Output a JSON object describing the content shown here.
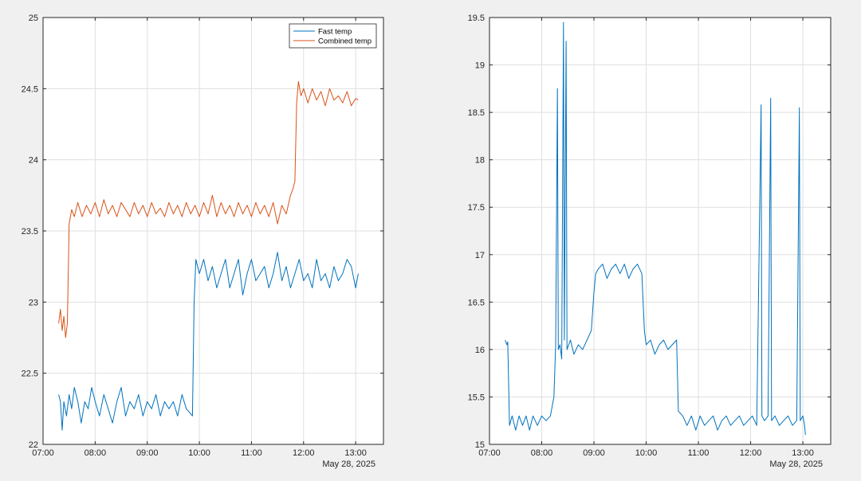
{
  "figure": {
    "background": "#f0f0f0"
  },
  "chart_data": [
    {
      "type": "line",
      "title": "",
      "xlabel": "",
      "ylabel": "",
      "date_label": "May 28, 2025",
      "x_tick_labels": [
        "07:00",
        "08:00",
        "09:00",
        "10:00",
        "11:00",
        "12:00",
        "13:00"
      ],
      "y_tick_labels": [
        "22",
        "22.5",
        "23",
        "23.5",
        "24",
        "24.5",
        "25"
      ],
      "xlim": [
        "07:00",
        "13:32"
      ],
      "ylim": [
        22,
        25
      ],
      "grid": true,
      "legend": {
        "location": "top-right",
        "entries": [
          "Fast temp",
          "Combined temp"
        ]
      },
      "series": [
        {
          "name": "Fast temp",
          "color": "#0072bd",
          "points": [
            [
              "07:18",
              22.35
            ],
            [
              "07:20",
              22.3
            ],
            [
              "07:22",
              22.1
            ],
            [
              "07:24",
              22.3
            ],
            [
              "07:27",
              22.2
            ],
            [
              "07:30",
              22.35
            ],
            [
              "07:33",
              22.25
            ],
            [
              "07:36",
              22.4
            ],
            [
              "07:40",
              22.3
            ],
            [
              "07:44",
              22.15
            ],
            [
              "07:48",
              22.3
            ],
            [
              "07:52",
              22.25
            ],
            [
              "07:56",
              22.4
            ],
            [
              "08:00",
              22.3
            ],
            [
              "08:05",
              22.2
            ],
            [
              "08:10",
              22.35
            ],
            [
              "08:15",
              22.25
            ],
            [
              "08:20",
              22.15
            ],
            [
              "08:25",
              22.3
            ],
            [
              "08:30",
              22.4
            ],
            [
              "08:35",
              22.2
            ],
            [
              "08:40",
              22.3
            ],
            [
              "08:45",
              22.25
            ],
            [
              "08:50",
              22.35
            ],
            [
              "08:55",
              22.2
            ],
            [
              "09:00",
              22.3
            ],
            [
              "09:05",
              22.25
            ],
            [
              "09:10",
              22.35
            ],
            [
              "09:15",
              22.2
            ],
            [
              "09:20",
              22.3
            ],
            [
              "09:25",
              22.25
            ],
            [
              "09:30",
              22.3
            ],
            [
              "09:35",
              22.2
            ],
            [
              "09:40",
              22.35
            ],
            [
              "09:45",
              22.25
            ],
            [
              "09:52",
              22.2
            ],
            [
              "09:54",
              23.0
            ],
            [
              "09:56",
              23.3
            ],
            [
              "10:00",
              23.2
            ],
            [
              "10:05",
              23.3
            ],
            [
              "10:10",
              23.15
            ],
            [
              "10:15",
              23.25
            ],
            [
              "10:20",
              23.1
            ],
            [
              "10:25",
              23.2
            ],
            [
              "10:30",
              23.3
            ],
            [
              "10:35",
              23.1
            ],
            [
              "10:40",
              23.2
            ],
            [
              "10:45",
              23.3
            ],
            [
              "10:50",
              23.05
            ],
            [
              "10:55",
              23.2
            ],
            [
              "11:00",
              23.3
            ],
            [
              "11:05",
              23.15
            ],
            [
              "11:10",
              23.2
            ],
            [
              "11:15",
              23.25
            ],
            [
              "11:20",
              23.1
            ],
            [
              "11:25",
              23.2
            ],
            [
              "11:30",
              23.35
            ],
            [
              "11:35",
              23.15
            ],
            [
              "11:40",
              23.25
            ],
            [
              "11:45",
              23.1
            ],
            [
              "11:50",
              23.2
            ],
            [
              "11:55",
              23.3
            ],
            [
              "12:00",
              23.15
            ],
            [
              "12:05",
              23.2
            ],
            [
              "12:10",
              23.1
            ],
            [
              "12:15",
              23.3
            ],
            [
              "12:20",
              23.15
            ],
            [
              "12:25",
              23.2
            ],
            [
              "12:30",
              23.1
            ],
            [
              "12:35",
              23.25
            ],
            [
              "12:40",
              23.15
            ],
            [
              "12:45",
              23.2
            ],
            [
              "12:50",
              23.3
            ],
            [
              "12:55",
              23.25
            ],
            [
              "13:00",
              23.1
            ],
            [
              "13:03",
              23.2
            ]
          ]
        },
        {
          "name": "Combined temp",
          "color": "#d95319",
          "points": [
            [
              "07:18",
              22.85
            ],
            [
              "07:20",
              22.95
            ],
            [
              "07:22",
              22.8
            ],
            [
              "07:24",
              22.9
            ],
            [
              "07:26",
              22.75
            ],
            [
              "07:28",
              22.85
            ],
            [
              "07:30",
              23.55
            ],
            [
              "07:33",
              23.65
            ],
            [
              "07:36",
              23.6
            ],
            [
              "07:40",
              23.7
            ],
            [
              "07:45",
              23.6
            ],
            [
              "07:50",
              23.68
            ],
            [
              "07:55",
              23.62
            ],
            [
              "08:00",
              23.7
            ],
            [
              "08:05",
              23.6
            ],
            [
              "08:10",
              23.72
            ],
            [
              "08:15",
              23.62
            ],
            [
              "08:20",
              23.68
            ],
            [
              "08:25",
              23.6
            ],
            [
              "08:30",
              23.7
            ],
            [
              "08:35",
              23.65
            ],
            [
              "08:40",
              23.6
            ],
            [
              "08:45",
              23.7
            ],
            [
              "08:50",
              23.62
            ],
            [
              "08:55",
              23.68
            ],
            [
              "09:00",
              23.6
            ],
            [
              "09:05",
              23.7
            ],
            [
              "09:10",
              23.62
            ],
            [
              "09:15",
              23.66
            ],
            [
              "09:20",
              23.6
            ],
            [
              "09:25",
              23.7
            ],
            [
              "09:30",
              23.62
            ],
            [
              "09:35",
              23.68
            ],
            [
              "09:40",
              23.6
            ],
            [
              "09:45",
              23.7
            ],
            [
              "09:50",
              23.62
            ],
            [
              "09:55",
              23.68
            ],
            [
              "10:00",
              23.6
            ],
            [
              "10:05",
              23.7
            ],
            [
              "10:10",
              23.62
            ],
            [
              "10:15",
              23.75
            ],
            [
              "10:20",
              23.6
            ],
            [
              "10:25",
              23.7
            ],
            [
              "10:30",
              23.62
            ],
            [
              "10:35",
              23.68
            ],
            [
              "10:40",
              23.6
            ],
            [
              "10:45",
              23.7
            ],
            [
              "10:50",
              23.62
            ],
            [
              "10:55",
              23.68
            ],
            [
              "11:00",
              23.6
            ],
            [
              "11:05",
              23.7
            ],
            [
              "11:10",
              23.62
            ],
            [
              "11:15",
              23.68
            ],
            [
              "11:20",
              23.6
            ],
            [
              "11:25",
              23.7
            ],
            [
              "11:30",
              23.55
            ],
            [
              "11:35",
              23.68
            ],
            [
              "11:40",
              23.62
            ],
            [
              "11:45",
              23.75
            ],
            [
              "11:48",
              23.8
            ],
            [
              "11:50",
              23.85
            ],
            [
              "11:52",
              24.4
            ],
            [
              "11:54",
              24.55
            ],
            [
              "11:57",
              24.45
            ],
            [
              "12:00",
              24.5
            ],
            [
              "12:05",
              24.4
            ],
            [
              "12:10",
              24.5
            ],
            [
              "12:15",
              24.42
            ],
            [
              "12:20",
              24.48
            ],
            [
              "12:25",
              24.38
            ],
            [
              "12:30",
              24.5
            ],
            [
              "12:35",
              24.42
            ],
            [
              "12:40",
              24.45
            ],
            [
              "12:45",
              24.4
            ],
            [
              "12:50",
              24.48
            ],
            [
              "12:55",
              24.38
            ],
            [
              "13:00",
              24.43
            ],
            [
              "13:03",
              24.42
            ]
          ]
        }
      ]
    },
    {
      "type": "line",
      "title": "",
      "xlabel": "",
      "ylabel": "",
      "date_label": "May 28, 2025",
      "x_tick_labels": [
        "07:00",
        "08:00",
        "09:00",
        "10:00",
        "11:00",
        "12:00",
        "13:00"
      ],
      "y_tick_labels": [
        "15",
        "15.5",
        "16",
        "16.5",
        "17",
        "17.5",
        "18",
        "18.5",
        "19",
        "19.5"
      ],
      "xlim": [
        "07:00",
        "13:32"
      ],
      "ylim": [
        15,
        19.5
      ],
      "grid": true,
      "series": [
        {
          "color": "#0072bd",
          "points": [
            [
              "07:18",
              16.1
            ],
            [
              "07:20",
              16.05
            ],
            [
              "07:21",
              16.08
            ],
            [
              "07:23",
              15.2
            ],
            [
              "07:26",
              15.3
            ],
            [
              "07:30",
              15.15
            ],
            [
              "07:34",
              15.3
            ],
            [
              "07:38",
              15.2
            ],
            [
              "07:42",
              15.3
            ],
            [
              "07:46",
              15.15
            ],
            [
              "07:50",
              15.3
            ],
            [
              "07:55",
              15.2
            ],
            [
              "08:00",
              15.3
            ],
            [
              "08:05",
              15.25
            ],
            [
              "08:10",
              15.3
            ],
            [
              "08:14",
              15.5
            ],
            [
              "08:16",
              16.05
            ],
            [
              "08:18",
              18.75
            ],
            [
              "08:19",
              16.0
            ],
            [
              "08:21",
              16.05
            ],
            [
              "08:23",
              15.9
            ],
            [
              "08:25",
              19.45
            ],
            [
              "08:26",
              16.1
            ],
            [
              "08:28",
              19.25
            ],
            [
              "08:29",
              16.0
            ],
            [
              "08:33",
              16.1
            ],
            [
              "08:37",
              15.95
            ],
            [
              "08:42",
              16.05
            ],
            [
              "08:47",
              16.0
            ],
            [
              "08:52",
              16.1
            ],
            [
              "08:57",
              16.2
            ],
            [
              "09:00",
              16.6
            ],
            [
              "09:02",
              16.8
            ],
            [
              "09:05",
              16.85
            ],
            [
              "09:10",
              16.9
            ],
            [
              "09:15",
              16.75
            ],
            [
              "09:20",
              16.85
            ],
            [
              "09:25",
              16.9
            ],
            [
              "09:30",
              16.8
            ],
            [
              "09:35",
              16.9
            ],
            [
              "09:40",
              16.75
            ],
            [
              "09:45",
              16.85
            ],
            [
              "09:50",
              16.9
            ],
            [
              "09:55",
              16.8
            ],
            [
              "09:58",
              16.2
            ],
            [
              "10:00",
              16.05
            ],
            [
              "10:05",
              16.1
            ],
            [
              "10:10",
              15.95
            ],
            [
              "10:15",
              16.05
            ],
            [
              "10:20",
              16.1
            ],
            [
              "10:25",
              16.0
            ],
            [
              "10:30",
              16.05
            ],
            [
              "10:35",
              16.1
            ],
            [
              "10:37",
              15.35
            ],
            [
              "10:42",
              15.3
            ],
            [
              "10:47",
              15.2
            ],
            [
              "10:52",
              15.3
            ],
            [
              "10:57",
              15.15
            ],
            [
              "11:02",
              15.3
            ],
            [
              "11:07",
              15.2
            ],
            [
              "11:12",
              15.25
            ],
            [
              "11:17",
              15.3
            ],
            [
              "11:22",
              15.15
            ],
            [
              "11:27",
              15.25
            ],
            [
              "11:32",
              15.3
            ],
            [
              "11:37",
              15.2
            ],
            [
              "11:42",
              15.25
            ],
            [
              "11:47",
              15.3
            ],
            [
              "11:52",
              15.2
            ],
            [
              "11:57",
              15.25
            ],
            [
              "12:02",
              15.3
            ],
            [
              "12:07",
              15.2
            ],
            [
              "12:12",
              18.58
            ],
            [
              "12:13",
              15.3
            ],
            [
              "12:16",
              15.25
            ],
            [
              "12:20",
              15.3
            ],
            [
              "12:23",
              18.65
            ],
            [
              "12:24",
              15.25
            ],
            [
              "12:28",
              15.3
            ],
            [
              "12:33",
              15.2
            ],
            [
              "12:38",
              15.25
            ],
            [
              "12:43",
              15.3
            ],
            [
              "12:48",
              15.2
            ],
            [
              "12:53",
              15.25
            ],
            [
              "12:56",
              18.55
            ],
            [
              "12:57",
              15.25
            ],
            [
              "13:00",
              15.3
            ],
            [
              "13:02",
              15.2
            ],
            [
              "13:03",
              15.1
            ]
          ]
        }
      ]
    }
  ]
}
